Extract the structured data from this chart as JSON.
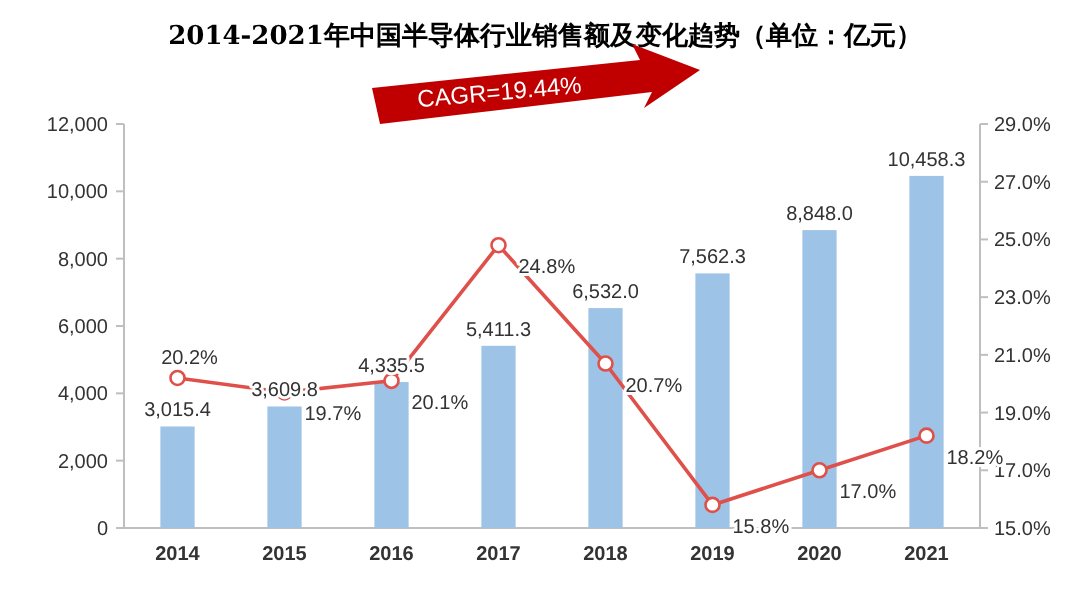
{
  "chart_data": {
    "type": "bar",
    "title": "2014-2021年中国半导体行业销售额及变化趋势（单位：亿元）",
    "categories": [
      "2014",
      "2015",
      "2016",
      "2017",
      "2018",
      "2019",
      "2020",
      "2021"
    ],
    "series": [
      {
        "color": "#9dc3e6",
        "values": [
          3015.4,
          3609.8,
          4335.5,
          5411.3,
          6532.0,
          7562.3,
          8848.0,
          10458.3
        ],
        "value_labels": [
          "3,015.4",
          "3,609.8",
          "4,335.5",
          "5,411.3",
          "6,532.0",
          "7,562.3",
          "8,848.0",
          "10,458.3"
        ]
      },
      {
        "type": "line",
        "axis": "y2",
        "color": "#e0504a",
        "marker": "circle",
        "values": [
          20.2,
          19.7,
          20.1,
          24.8,
          20.7,
          15.8,
          17.0,
          18.2
        ],
        "value_labels": [
          "20.2%",
          "19.7%",
          "20.1%",
          "24.8%",
          "20.7%",
          "15.8%",
          "17.0%",
          "18.2%"
        ]
      }
    ],
    "ylim": [
      0,
      12000
    ],
    "yticks": [
      0,
      {
        "value": 2000,
        "label": "2,000"
      },
      {
        "value": 4000,
        "label": "4,000"
      },
      {
        "value": 6000,
        "label": "6,000"
      },
      {
        "value": 8000,
        "label": "8,000"
      },
      {
        "value": 10000,
        "label": "10,000"
      },
      {
        "value": 12000,
        "label": "12,000"
      }
    ],
    "y2lim": [
      15,
      29
    ],
    "y2ticks": [
      {
        "value": 15,
        "label": "15.0%"
      },
      {
        "value": 17,
        "label": "17.0%"
      },
      {
        "value": 19,
        "label": "19.0%"
      },
      {
        "value": 21,
        "label": "21.0%"
      },
      {
        "value": 23,
        "label": "23.0%"
      },
      {
        "value": 25,
        "label": "25.0%"
      },
      {
        "value": 27,
        "label": "27.0%"
      },
      {
        "value": 29,
        "label": "29.0%"
      }
    ],
    "annotations": [
      "CAGR=19.44%"
    ],
    "grid": false
  }
}
